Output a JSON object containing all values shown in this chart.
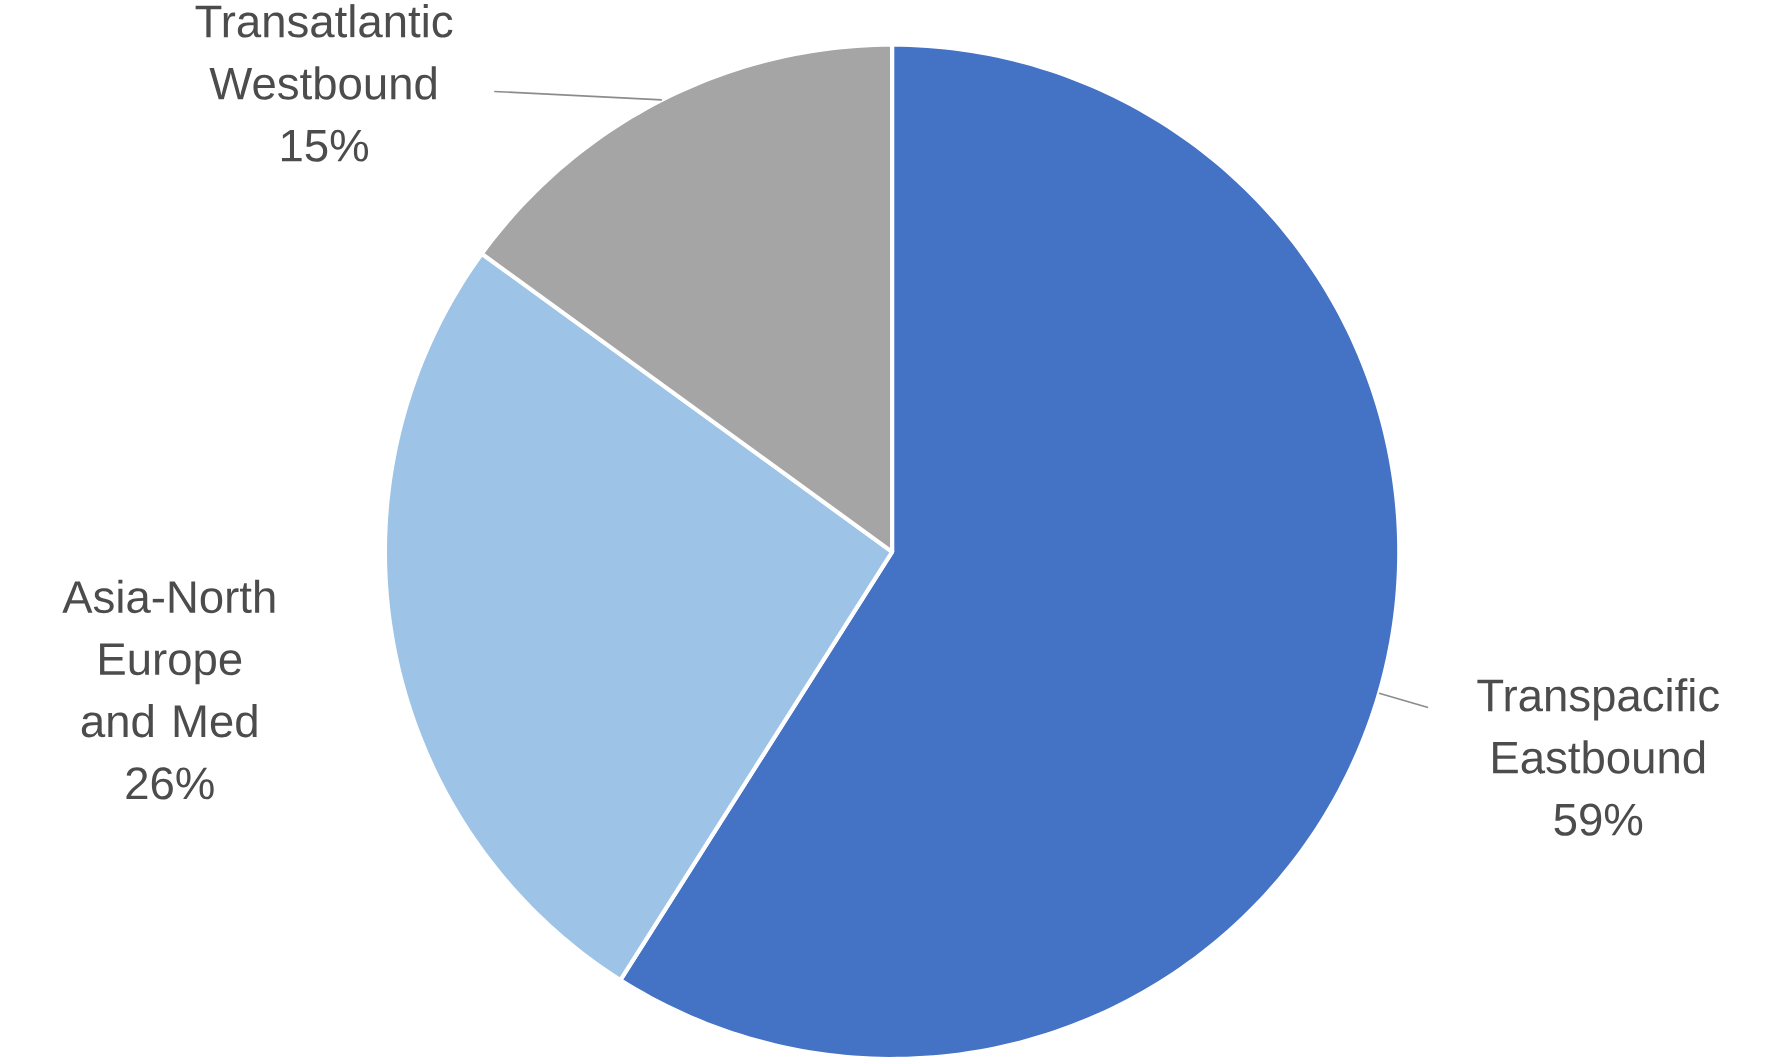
{
  "chart_data": {
    "type": "pie",
    "categories": [
      "Transpacific Eastbound",
      "Asia-North Europe and Med",
      "Transatlantic Westbound"
    ],
    "values": [
      59,
      26,
      15
    ],
    "value_labels": [
      "59%",
      "26%",
      "15%"
    ],
    "colors": [
      "#4472c4",
      "#9dc3e6",
      "#a5a5a5"
    ]
  }
}
